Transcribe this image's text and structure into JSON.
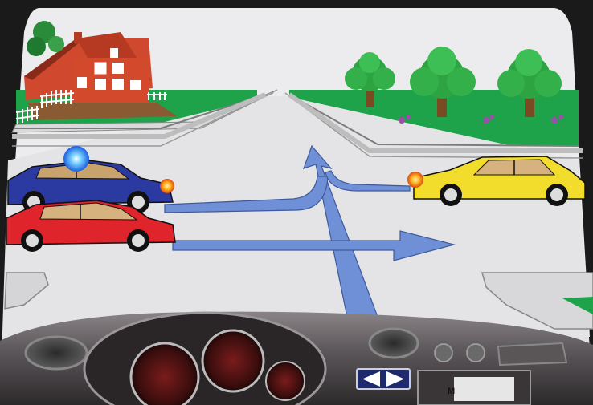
{
  "scene": {
    "description_hidden": "",
    "mode_label": "M",
    "turn_indicator": {
      "left": "left-arrow-icon",
      "right": "right-arrow-icon"
    },
    "vehicles": [
      {
        "name": "blue-car",
        "color": "#2b3aa0",
        "signal": "blue-flashing-light-icon"
      },
      {
        "name": "red-car",
        "color": "#e0242b"
      },
      {
        "name": "yellow-car",
        "color": "#f2dc2c",
        "signal": "orange-turn-signal-icon"
      }
    ],
    "arrows_color": "#6f8fd6",
    "colors": {
      "sky": "#eeeeee",
      "grass": "#1ea34a",
      "road": "#e5e5e7",
      "dash": "#5a5558"
    }
  }
}
